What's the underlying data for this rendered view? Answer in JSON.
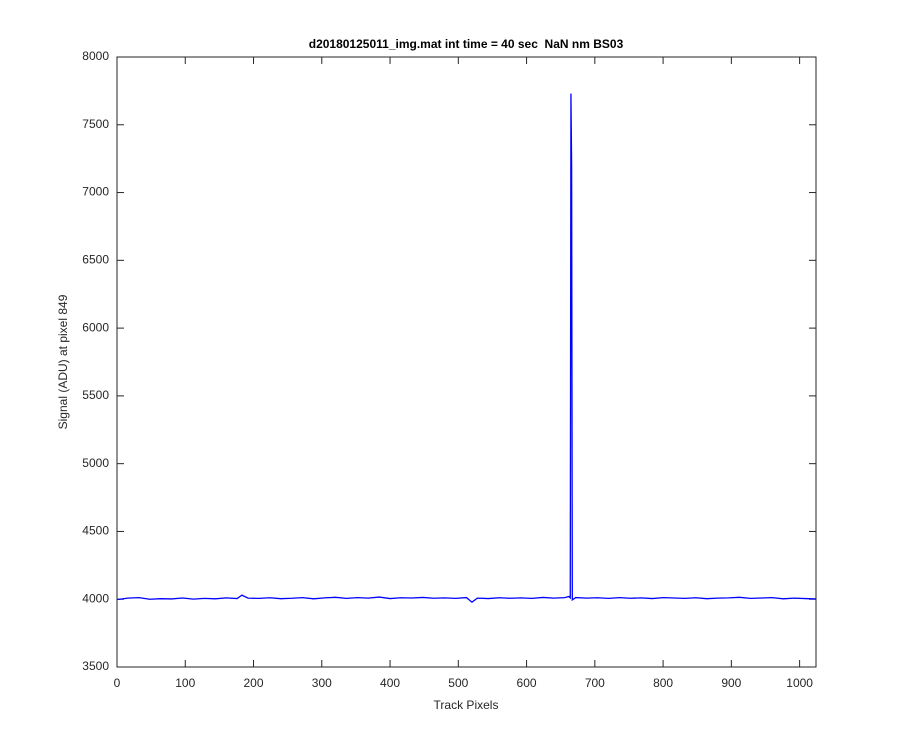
{
  "chart_data": {
    "type": "line",
    "title": "d20180125011_img.mat int time = 40 sec  NaN nm BS03",
    "x_label": "Track Pixels",
    "y_label": "Signal (ADU) at pixel 849",
    "color": "#0000ff",
    "x": [
      1,
      16,
      32,
      48,
      64,
      80,
      96,
      112,
      128,
      144,
      160,
      176,
      183,
      192,
      208,
      224,
      240,
      256,
      272,
      288,
      304,
      320,
      336,
      352,
      368,
      384,
      400,
      416,
      432,
      448,
      464,
      480,
      496,
      512,
      520,
      528,
      544,
      560,
      576,
      592,
      608,
      624,
      640,
      656,
      662,
      664,
      665,
      666,
      667,
      672,
      688,
      704,
      720,
      736,
      752,
      768,
      784,
      800,
      816,
      832,
      848,
      864,
      880,
      896,
      912,
      928,
      944,
      960,
      976,
      992,
      1008,
      1024
    ],
    "values": [
      3998,
      4008,
      4012,
      4000,
      4004,
      4002,
      4009,
      4001,
      4006,
      4003,
      4010,
      4005,
      4030,
      4008,
      4006,
      4011,
      4004,
      4007,
      4012,
      4003,
      4010,
      4014,
      4006,
      4012,
      4008,
      4016,
      4005,
      4011,
      4009,
      4013,
      4007,
      4010,
      4006,
      4012,
      3978,
      4008,
      4005,
      4011,
      4007,
      4010,
      4006,
      4013,
      4008,
      4012,
      4020,
      4010,
      7730,
      7200,
      3995,
      4012,
      4008,
      4011,
      4006,
      4012,
      4007,
      4010,
      4005,
      4012,
      4009,
      4006,
      4011,
      4004,
      4008,
      4010,
      4014,
      4006,
      4009,
      4012,
      4003,
      4008,
      4005,
      4002
    ],
    "xlim": [
      0,
      1024
    ],
    "ylim": [
      3500,
      8000
    ],
    "xticks": [
      0,
      100,
      200,
      300,
      400,
      500,
      600,
      700,
      800,
      900,
      1000
    ],
    "yticks": [
      3500,
      4000,
      4500,
      5000,
      5500,
      6000,
      6500,
      7000,
      7500,
      8000
    ]
  }
}
